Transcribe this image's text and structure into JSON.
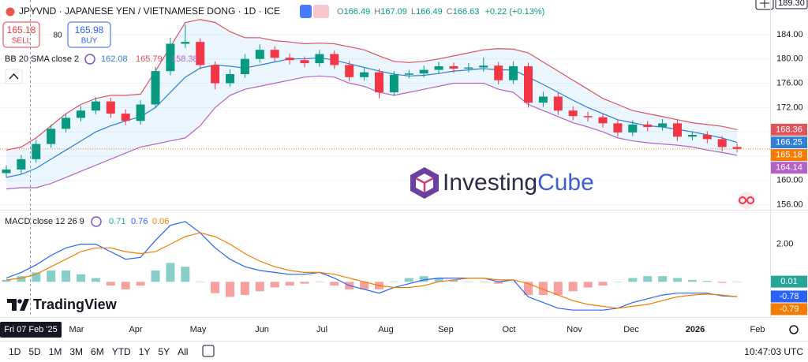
{
  "header": {
    "symbol": "JPYVND · JAPANESE YEN / VIETNAMESE DONG · 1D · ICE",
    "ohlc": [
      {
        "key": "O",
        "value": "166.49"
      },
      {
        "key": "H",
        "value": "167.09"
      },
      {
        "key": "L",
        "value": "166.49"
      },
      {
        "key": "C",
        "value": "166.63"
      }
    ],
    "change": "+0.22 (+0.13%)",
    "sell": {
      "price": "165.18",
      "label": "SELL"
    },
    "spread": "80",
    "buy": {
      "price": "165.98",
      "label": "BUY"
    },
    "top_price": "189.30"
  },
  "chart_data": [
    {
      "type": "candlestick",
      "up_color": "#089981",
      "down_color": "#f23645",
      "last_color": "#f57c00",
      "open": [
        161.2,
        161.8,
        163.5,
        166,
        168.5,
        170.3,
        171.5,
        173,
        171,
        169.8,
        172.5,
        178,
        182.5,
        182.8,
        179,
        176,
        177.5,
        180,
        181.5,
        180.2,
        179.8,
        179.3,
        180.8,
        179,
        177,
        177.8,
        174.5,
        177.4,
        177.6,
        178.2,
        178.8,
        178.4,
        178.6,
        178.9,
        176.5,
        178.8,
        172.8,
        173.8,
        171.5,
        170.6,
        170.4,
        169.4,
        167.9,
        169.2,
        168.8,
        169.4,
        167.2,
        167.5,
        166.8,
        165.5
      ],
      "high": [
        162.5,
        164.2,
        166.7,
        169.2,
        171,
        172.2,
        173.7,
        173.6,
        171.7,
        173.2,
        178.7,
        183.5,
        185.6,
        183.4,
        179.6,
        178.3,
        180.8,
        182.4,
        182.1,
        180.9,
        180.4,
        181.5,
        181.4,
        179.7,
        178.5,
        178.4,
        178,
        178.2,
        178.9,
        179.5,
        179.4,
        179.3,
        180.2,
        179.5,
        179.6,
        179.4,
        174.6,
        174.4,
        172.2,
        171.3,
        171,
        170,
        169.9,
        169.8,
        170.1,
        169.9,
        168.1,
        168.1,
        167.3,
        166.1
      ],
      "low": [
        160.5,
        161.1,
        162.9,
        165.4,
        167.9,
        169.7,
        170.9,
        170.3,
        169.1,
        169.2,
        171.9,
        177.3,
        181.8,
        178.3,
        175,
        175.4,
        176.9,
        179.4,
        179.5,
        179.1,
        178.6,
        178.7,
        178.3,
        176.3,
        176.4,
        173.5,
        173.9,
        176.8,
        177,
        177.5,
        177.7,
        177.8,
        177.9,
        175.8,
        175.9,
        172,
        172.1,
        170.8,
        169.9,
        169.7,
        168.7,
        167.2,
        167.3,
        168.1,
        168.2,
        166.5,
        166.6,
        166.1,
        164.8,
        164.6
      ],
      "close": [
        161.8,
        163.5,
        166,
        168.5,
        170.3,
        171.5,
        173,
        171,
        169.8,
        172.5,
        178,
        182.5,
        182.8,
        179,
        176,
        177.5,
        180,
        181.5,
        180.2,
        179.8,
        179.3,
        180.8,
        179,
        177,
        177.8,
        174.5,
        177.4,
        177.6,
        178.2,
        178.8,
        178.4,
        178.6,
        178.9,
        176.5,
        178.8,
        172.8,
        173.8,
        171.5,
        170.6,
        170.4,
        169.4,
        167.9,
        169.2,
        168.8,
        169.4,
        167.2,
        167.5,
        166.8,
        165.5,
        165.18
      ],
      "bands": {
        "title": "BB 20 SMA close 2",
        "fill": "rgba(33,150,243,0.09)",
        "basis": {
          "color": "#2f7fd6",
          "legend_value": 162.08,
          "values": [
            160.5,
            161,
            162,
            163.5,
            165,
            166.5,
            168,
            169,
            169.8,
            170.5,
            172,
            174.5,
            177,
            178.5,
            179,
            178.8,
            178.5,
            179,
            179.5,
            180,
            180,
            180.2,
            179.8,
            179.2,
            178.6,
            178,
            177.5,
            177.2,
            177.3,
            177.6,
            178,
            178.2,
            178.4,
            178.2,
            178.2,
            177,
            175.8,
            174.5,
            173.2,
            172,
            171,
            170,
            169.5,
            169,
            168.8,
            168.4,
            168,
            167.5,
            167,
            166.25
          ]
        },
        "upper": {
          "color": "#e0525c",
          "legend_value": 165.79,
          "values": [
            165,
            165.5,
            167,
            169,
            171,
            172.5,
            173.5,
            174,
            174,
            174.2,
            178,
            182,
            186,
            186.5,
            186,
            184.5,
            183.5,
            183.5,
            183,
            182.8,
            182.5,
            182.6,
            182.5,
            182,
            181.5,
            180.5,
            179.6,
            179.4,
            179.6,
            180,
            180.5,
            181,
            181.5,
            181.7,
            181.6,
            181,
            179.5,
            178,
            176.5,
            175,
            173.5,
            172.5,
            171.5,
            171,
            170.5,
            170,
            169.5,
            169.2,
            168.9,
            168.36
          ]
        },
        "lower": {
          "color": "#b562c7",
          "legend_value": 158.38,
          "values": [
            158.6,
            158.8,
            158.8,
            159.5,
            160.5,
            161.5,
            162.5,
            163.5,
            164.5,
            165.5,
            166,
            166.5,
            167,
            169,
            172,
            174,
            175,
            175.5,
            176,
            176.5,
            177,
            177.2,
            177,
            176,
            175.5,
            174.5,
            174,
            174.5,
            175,
            175.5,
            176,
            176,
            176,
            175,
            174.5,
            172.5,
            171.5,
            170.5,
            169.5,
            168.8,
            168,
            167,
            166.5,
            166.2,
            166,
            165.8,
            165.5,
            165,
            164.6,
            164.14
          ]
        }
      },
      "ylim": [
        155.3,
        189.7
      ],
      "yticks": [
        {
          "value": 156,
          "label": "156.00"
        },
        {
          "value": 160,
          "label": "160.00"
        },
        {
          "value": 164,
          "label": "164.00"
        },
        {
          "value": 168,
          "label": "168.00"
        },
        {
          "value": 172,
          "label": "172.00"
        },
        {
          "value": 176,
          "label": "176.00"
        },
        {
          "value": 180,
          "label": "180.00"
        },
        {
          "value": 184,
          "label": "184.00"
        }
      ],
      "grid": true
    },
    {
      "type": "macd",
      "title": "MACD close 12 26 9",
      "histogram": {
        "up_color": "#26a69a",
        "down_color": "#ef5350",
        "legend_value": 0.71,
        "values": [
          0.1,
          0.3,
          0.5,
          0.6,
          0.6,
          0.4,
          0.2,
          -0.2,
          -0.4,
          -0.2,
          0.6,
          1.0,
          0.8,
          0,
          -0.6,
          -0.8,
          -0.7,
          -0.5,
          -0.3,
          -0.2,
          -0.1,
          0,
          -0.2,
          -0.4,
          -0.4,
          -0.4,
          0,
          0.2,
          0.3,
          0.2,
          0.1,
          0,
          0,
          -0.1,
          0,
          -0.7,
          -0.7,
          -0.7,
          -0.5,
          -0.3,
          -0.2,
          0,
          0.2,
          0.3,
          0.3,
          0.2,
          0.1,
          0.05,
          -0.05,
          0.01
        ]
      },
      "macd": {
        "color": "#2962ff",
        "legend_value": 0.76,
        "values": [
          0.2,
          0.5,
          0.9,
          1.4,
          1.8,
          2.0,
          2.0,
          1.6,
          1.2,
          1.3,
          2.2,
          3.0,
          3.2,
          2.6,
          1.8,
          1.2,
          0.8,
          0.6,
          0.5,
          0.4,
          0.4,
          0.5,
          0.2,
          -0.2,
          -0.4,
          -0.6,
          -0.3,
          -0.1,
          0.1,
          0.2,
          0.2,
          0.2,
          0.2,
          0,
          0.1,
          -0.8,
          -1.1,
          -1.4,
          -1.5,
          -1.5,
          -1.5,
          -1.4,
          -1.1,
          -0.9,
          -0.7,
          -0.6,
          -0.6,
          -0.6,
          -0.75,
          -0.78
        ]
      },
      "signal": {
        "color": "#f57c00",
        "legend_value": 0.06,
        "values": [
          0.1,
          0.2,
          0.4,
          0.8,
          1.2,
          1.6,
          1.8,
          1.8,
          1.6,
          1.5,
          1.6,
          2.0,
          2.4,
          2.6,
          2.4,
          2.0,
          1.5,
          1.1,
          0.8,
          0.6,
          0.5,
          0.5,
          0.4,
          0.2,
          0,
          -0.2,
          -0.3,
          -0.3,
          -0.2,
          0,
          0.1,
          0.2,
          0.2,
          0.1,
          0.1,
          -0.1,
          -0.4,
          -0.7,
          -1.0,
          -1.2,
          -1.3,
          -1.4,
          -1.3,
          -1.2,
          -1.0,
          -0.8,
          -0.7,
          -0.65,
          -0.7,
          -0.79
        ]
      },
      "ylim": [
        -1.87,
        3.74
      ],
      "yticks": [
        {
          "value": 2,
          "label": "2.00"
        }
      ]
    }
  ],
  "time_axis": {
    "labels": [
      "Mar",
      "Apr",
      "May",
      "Jun",
      "Jul",
      "Aug",
      "Sep",
      "Oct",
      "Nov",
      "Dec",
      "2026",
      "Feb"
    ],
    "crosshair": "Fri 07 Feb '25"
  },
  "watermarks": {
    "investing": "Investing",
    "cube": "Cube",
    "tradingview": "TradingView"
  },
  "toolbar": {
    "ranges": [
      "1D",
      "5D",
      "1M",
      "3M",
      "6M",
      "YTD",
      "1Y",
      "5Y",
      "All"
    ],
    "clock": "10:47:03 UTC"
  }
}
